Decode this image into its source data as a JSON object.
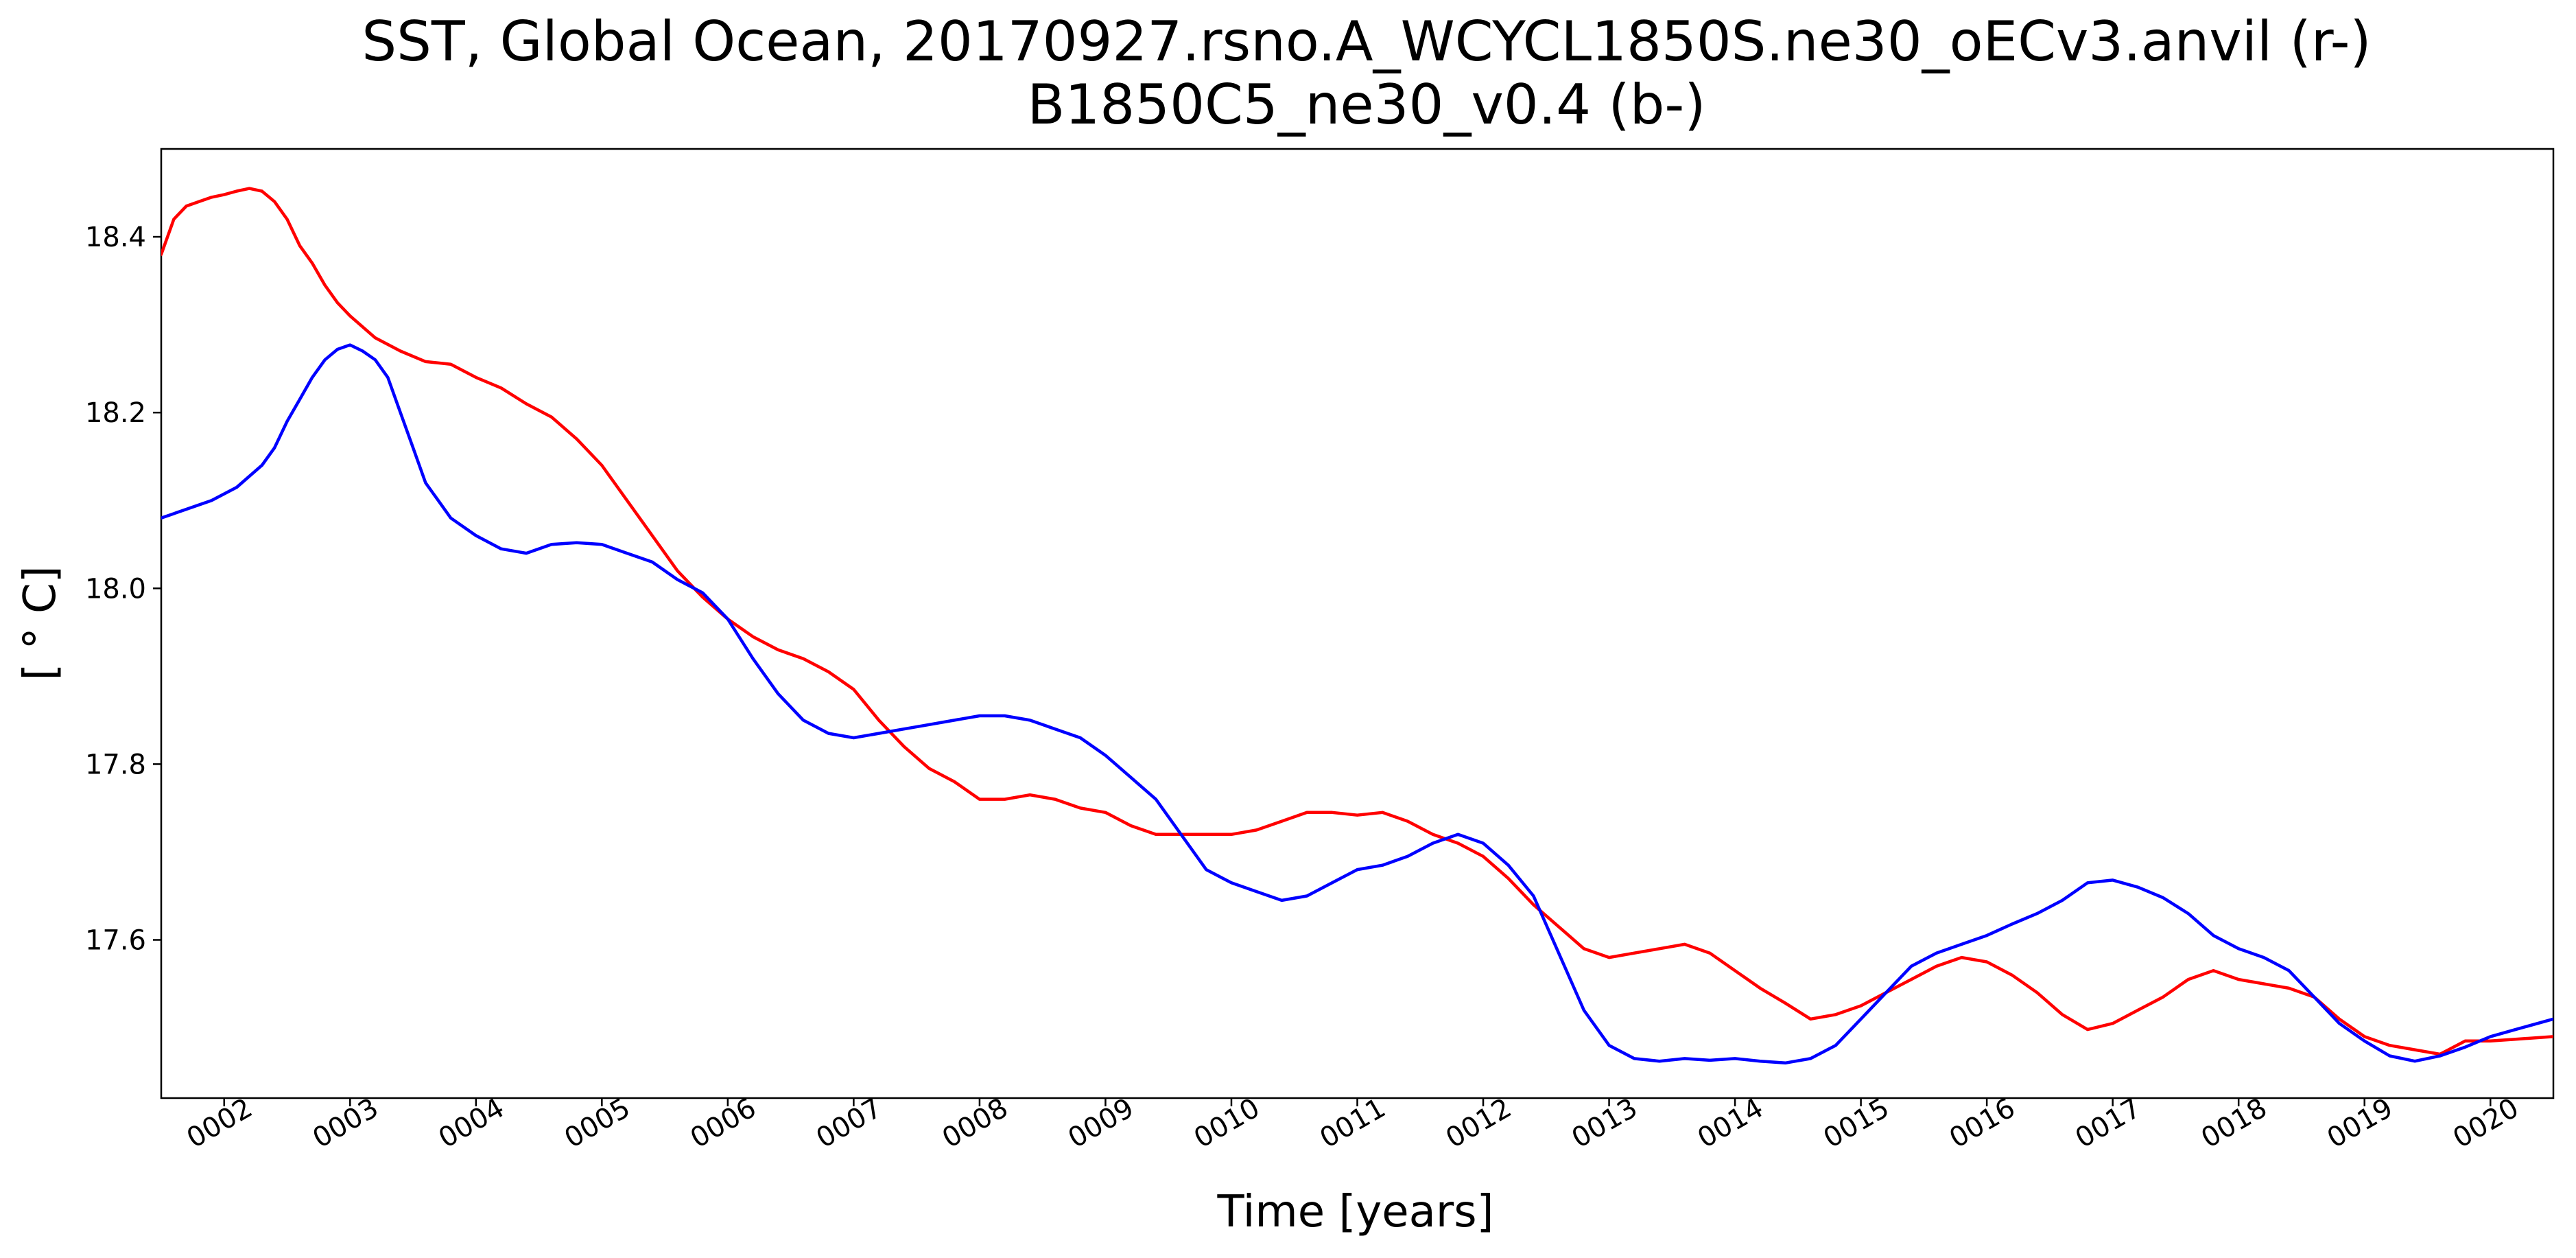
{
  "chart_data": {
    "type": "line",
    "title": "SST, Global Ocean, 20170927.rsno.A_WCYCL1850S.ne30_oECv3.anvil (r-)",
    "subtitle": "B1850C5_ne30_v0.4 (b-)",
    "xlabel": "Time [years]",
    "ylabel": "[ ° C]",
    "xlim": [
      1.5,
      20.5
    ],
    "ylim": [
      17.42,
      18.5
    ],
    "x_ticks": [
      2,
      3,
      4,
      5,
      6,
      7,
      8,
      9,
      10,
      11,
      12,
      13,
      14,
      15,
      16,
      17,
      18,
      19,
      20
    ],
    "x_tick_labels": [
      "0002",
      "0003",
      "0004",
      "0005",
      "0006",
      "0007",
      "0008",
      "0009",
      "0010",
      "0011",
      "0012",
      "0013",
      "0014",
      "0015",
      "0016",
      "0017",
      "0018",
      "0019",
      "0020"
    ],
    "y_ticks": [
      17.6,
      17.8,
      18.0,
      18.2,
      18.4
    ],
    "y_tick_labels": [
      "17.6",
      "17.8",
      "18.0",
      "18.2",
      "18.4"
    ],
    "grid": false,
    "legend": "none",
    "series": [
      {
        "color": "#ff0000",
        "x": [
          1.5,
          1.6,
          1.7,
          1.8,
          1.9,
          2.0,
          2.1,
          2.2,
          2.3,
          2.4,
          2.5,
          2.6,
          2.7,
          2.8,
          2.9,
          3.0,
          3.2,
          3.4,
          3.6,
          3.8,
          4.0,
          4.2,
          4.4,
          4.6,
          4.8,
          5.0,
          5.2,
          5.4,
          5.6,
          5.8,
          6.0,
          6.2,
          6.4,
          6.6,
          6.8,
          7.0,
          7.2,
          7.4,
          7.6,
          7.8,
          8.0,
          8.2,
          8.4,
          8.6,
          8.8,
          9.0,
          9.2,
          9.4,
          9.6,
          9.8,
          10.0,
          10.2,
          10.4,
          10.6,
          10.8,
          11.0,
          11.2,
          11.4,
          11.6,
          11.8,
          12.0,
          12.2,
          12.4,
          12.6,
          12.8,
          13.0,
          13.2,
          13.4,
          13.6,
          13.8,
          14.0,
          14.2,
          14.4,
          14.6,
          14.8,
          15.0,
          15.2,
          15.4,
          15.6,
          15.8,
          16.0,
          16.2,
          16.4,
          16.6,
          16.8,
          17.0,
          17.2,
          17.4,
          17.6,
          17.8,
          18.0,
          18.2,
          18.4,
          18.6,
          18.8,
          19.0,
          19.2,
          19.4,
          19.6,
          19.8,
          20.0,
          20.2,
          20.5
        ],
        "y": [
          18.38,
          18.42,
          18.435,
          18.44,
          18.445,
          18.448,
          18.452,
          18.455,
          18.452,
          18.44,
          18.42,
          18.39,
          18.37,
          18.345,
          18.325,
          18.31,
          18.285,
          18.27,
          18.258,
          18.255,
          18.24,
          18.228,
          18.21,
          18.195,
          18.17,
          18.14,
          18.1,
          18.06,
          18.02,
          17.99,
          17.965,
          17.945,
          17.93,
          17.92,
          17.905,
          17.885,
          17.85,
          17.82,
          17.795,
          17.78,
          17.76,
          17.76,
          17.765,
          17.76,
          17.75,
          17.745,
          17.73,
          17.72,
          17.72,
          17.72,
          17.72,
          17.725,
          17.735,
          17.745,
          17.745,
          17.742,
          17.745,
          17.735,
          17.72,
          17.71,
          17.695,
          17.67,
          17.64,
          17.615,
          17.59,
          17.58,
          17.585,
          17.59,
          17.595,
          17.585,
          17.565,
          17.545,
          17.528,
          17.51,
          17.515,
          17.525,
          17.54,
          17.555,
          17.57,
          17.58,
          17.575,
          17.56,
          17.54,
          17.515,
          17.498,
          17.505,
          17.52,
          17.535,
          17.555,
          17.565,
          17.555,
          17.55,
          17.545,
          17.535,
          17.51,
          17.49,
          17.48,
          17.475,
          17.47,
          17.485,
          17.485,
          17.487,
          17.49
        ]
      },
      {
        "color": "#0000ff",
        "x": [
          1.5,
          1.7,
          1.9,
          2.1,
          2.3,
          2.4,
          2.5,
          2.6,
          2.7,
          2.8,
          2.9,
          3.0,
          3.1,
          3.2,
          3.3,
          3.4,
          3.5,
          3.6,
          3.7,
          3.8,
          4.0,
          4.2,
          4.4,
          4.6,
          4.8,
          5.0,
          5.2,
          5.4,
          5.6,
          5.8,
          6.0,
          6.2,
          6.4,
          6.6,
          6.8,
          7.0,
          7.2,
          7.4,
          7.6,
          7.8,
          8.0,
          8.2,
          8.4,
          8.6,
          8.8,
          9.0,
          9.2,
          9.4,
          9.6,
          9.8,
          10.0,
          10.2,
          10.4,
          10.6,
          10.8,
          11.0,
          11.2,
          11.4,
          11.6,
          11.8,
          12.0,
          12.2,
          12.4,
          12.6,
          12.8,
          13.0,
          13.2,
          13.4,
          13.6,
          13.8,
          14.0,
          14.2,
          14.4,
          14.6,
          14.8,
          15.0,
          15.2,
          15.4,
          15.6,
          15.8,
          16.0,
          16.2,
          16.4,
          16.6,
          16.8,
          17.0,
          17.2,
          17.4,
          17.6,
          17.8,
          18.0,
          18.2,
          18.4,
          18.6,
          18.8,
          19.0,
          19.2,
          19.4,
          19.6,
          19.8,
          20.0,
          20.2,
          20.5
        ],
        "y": [
          18.08,
          18.09,
          18.1,
          18.115,
          18.14,
          18.16,
          18.19,
          18.215,
          18.24,
          18.26,
          18.272,
          18.277,
          18.27,
          18.26,
          18.24,
          18.2,
          18.16,
          18.12,
          18.1,
          18.08,
          18.06,
          18.045,
          18.04,
          18.05,
          18.052,
          18.05,
          18.04,
          18.03,
          18.01,
          17.995,
          17.965,
          17.92,
          17.88,
          17.85,
          17.835,
          17.83,
          17.835,
          17.84,
          17.845,
          17.85,
          17.855,
          17.855,
          17.85,
          17.84,
          17.83,
          17.81,
          17.785,
          17.76,
          17.72,
          17.68,
          17.665,
          17.655,
          17.645,
          17.65,
          17.665,
          17.68,
          17.685,
          17.695,
          17.71,
          17.72,
          17.71,
          17.685,
          17.65,
          17.585,
          17.52,
          17.48,
          17.465,
          17.462,
          17.465,
          17.463,
          17.465,
          17.462,
          17.46,
          17.465,
          17.48,
          17.51,
          17.54,
          17.57,
          17.585,
          17.595,
          17.605,
          17.618,
          17.63,
          17.645,
          17.665,
          17.668,
          17.66,
          17.648,
          17.63,
          17.605,
          17.59,
          17.58,
          17.565,
          17.535,
          17.505,
          17.485,
          17.468,
          17.462,
          17.468,
          17.478,
          17.49,
          17.498,
          17.51
        ]
      }
    ]
  }
}
